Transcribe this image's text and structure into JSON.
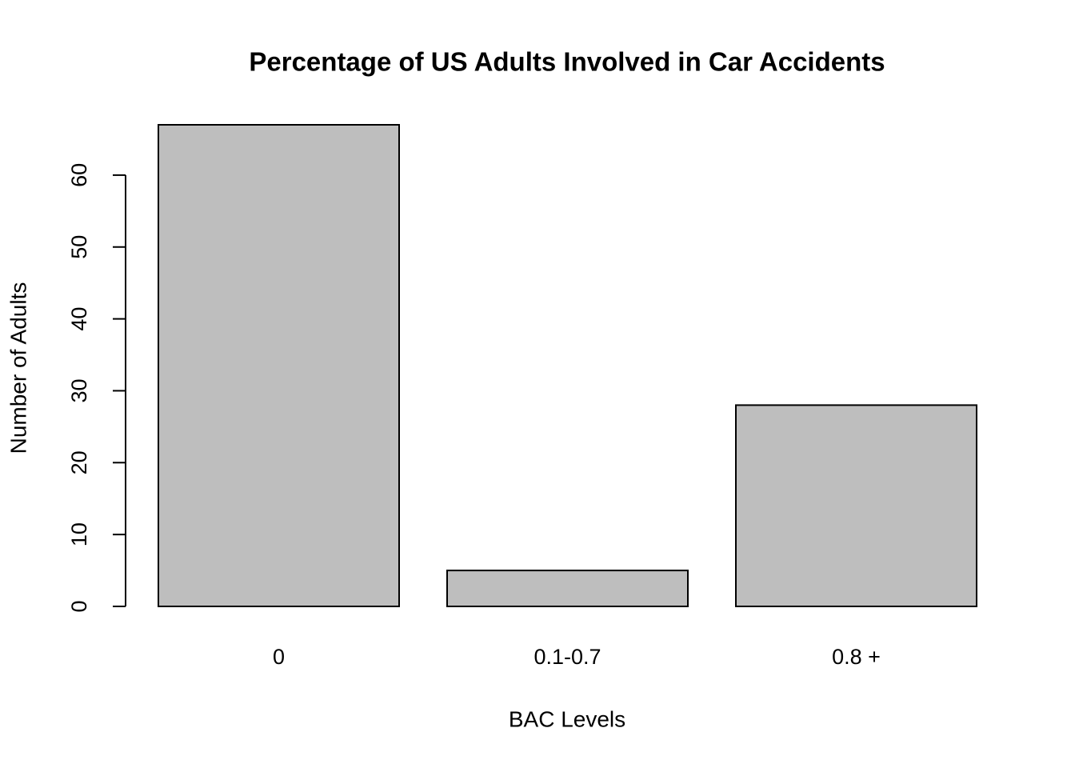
{
  "chart_data": {
    "type": "bar",
    "title": "Percentage of US Adults Involved in Car Accidents",
    "x_label": "BAC Levels",
    "y_label": "Number of Adults",
    "categories": [
      "0",
      "0.1-0.7",
      "0.8 +"
    ],
    "values": [
      67,
      5,
      28
    ],
    "color": "#bebebe",
    "ylim": [
      0,
      67
    ],
    "yticks": [
      0,
      10,
      20,
      30,
      40,
      50,
      60
    ]
  }
}
